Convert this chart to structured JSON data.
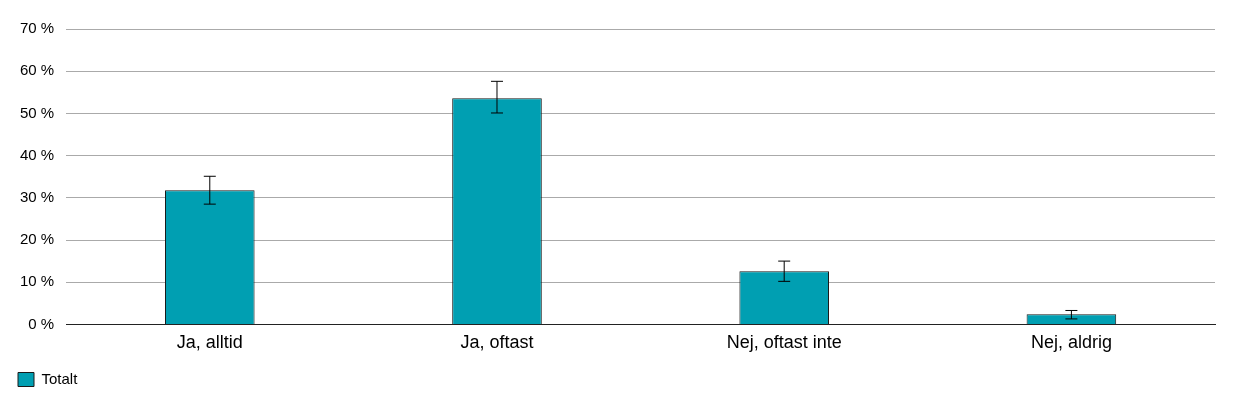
{
  "chart_data": {
    "type": "bar",
    "categories": [
      "Ja, alltid",
      "Ja, oftast",
      "Nej, oftast inte",
      "Nej, aldrig"
    ],
    "series": [
      {
        "name": "Totalt",
        "color": "#009fb2",
        "values": [
          31.8,
          53.6,
          12.6,
          2.4
        ],
        "errors": [
          [
            28.5,
            35.1
          ],
          [
            50.1,
            57.6
          ],
          [
            10.2,
            15.0
          ],
          [
            1.3,
            3.3
          ]
        ]
      }
    ],
    "ylim": [
      0,
      70
    ],
    "yticks": [
      {
        "value": 0,
        "label": "0 %"
      },
      {
        "value": 10,
        "label": "10 %"
      },
      {
        "value": 20,
        "label": "20 %"
      },
      {
        "value": 30,
        "label": "30 %"
      },
      {
        "value": 40,
        "label": "40 %"
      },
      {
        "value": 50,
        "label": "50 %"
      },
      {
        "value": 60,
        "label": "60 %"
      },
      {
        "value": 70,
        "label": "70 %"
      }
    ],
    "grid": "y",
    "legend": "bottom left"
  }
}
